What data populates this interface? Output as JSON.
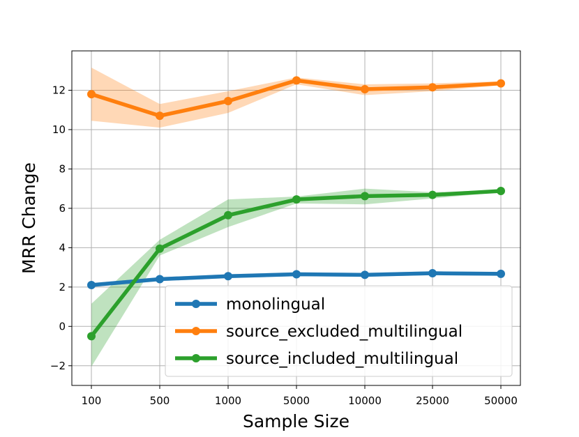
{
  "chart_data": {
    "type": "line",
    "categories": [
      "100",
      "500",
      "1000",
      "5000",
      "10000",
      "25000",
      "50000"
    ],
    "xlabel": "Sample Size",
    "ylabel": "MRR Change",
    "ylim": [
      -3.0,
      14.0
    ],
    "yticks": [
      -2,
      0,
      2,
      4,
      6,
      8,
      10,
      12
    ],
    "ytick_labels": [
      "−2",
      "0",
      "2",
      "4",
      "6",
      "8",
      "10",
      "12"
    ],
    "grid": true,
    "legend_position": "lower-right",
    "series": [
      {
        "name": "monolingual",
        "color": "#1f77b4",
        "values": [
          2.1,
          2.4,
          2.55,
          2.65,
          2.62,
          2.7,
          2.67
        ],
        "lower": [
          2.0,
          2.3,
          2.45,
          2.55,
          2.52,
          2.6,
          2.57
        ],
        "upper": [
          2.2,
          2.5,
          2.65,
          2.75,
          2.72,
          2.8,
          2.77
        ]
      },
      {
        "name": "source_excluded_multilingual",
        "color": "#ff7f0e",
        "values": [
          11.8,
          10.7,
          11.45,
          12.5,
          12.05,
          12.15,
          12.35
        ],
        "lower": [
          10.45,
          10.1,
          10.85,
          12.3,
          11.75,
          11.95,
          12.25
        ],
        "upper": [
          13.15,
          11.3,
          11.95,
          12.65,
          12.3,
          12.35,
          12.45
        ]
      },
      {
        "name": "source_included_multilingual",
        "color": "#2ca02c",
        "values": [
          -0.5,
          3.95,
          5.65,
          6.45,
          6.62,
          6.68,
          6.88
        ],
        "lower": [
          -2.05,
          3.6,
          5.05,
          6.25,
          6.2,
          6.5,
          6.82
        ],
        "upper": [
          1.15,
          4.4,
          6.45,
          6.6,
          7.0,
          6.82,
          6.94
        ]
      }
    ]
  }
}
